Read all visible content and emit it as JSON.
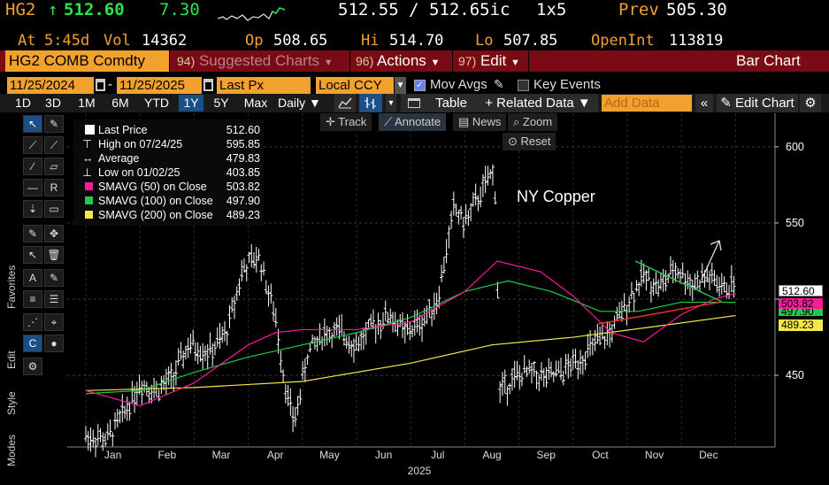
{
  "quote": {
    "ticker": "HG2",
    "arrow": "↑",
    "last": "512.60",
    "change": "7.30",
    "bid_ask": "512.55 / 512.65ic",
    "size": "1x5",
    "prev_label": "Prev",
    "prev": "505.30",
    "at_label": "At",
    "at_time": "5:45d",
    "vol_label": "Vol",
    "vol": "14362",
    "op_label": "Op",
    "op": "508.65",
    "hi_label": "Hi",
    "hi": "514.70",
    "lo_label": "Lo",
    "lo": "507.85",
    "oi_label": "OpenInt",
    "oi": "113819"
  },
  "menubar": {
    "security": "HG2 COMB Comdty",
    "suggested_num": "94)",
    "suggested": "Suggested Charts",
    "actions_num": "96)",
    "actions": "Actions",
    "edit_num": "97)",
    "edit": "Edit",
    "title": "Bar Chart"
  },
  "settings": {
    "start_date": "11/25/2024",
    "end_date": "11/25/2025",
    "dash": "-",
    "field": "Last Px",
    "currency": "Local CCY",
    "mov_avgs": "Mov Avgs",
    "key_events": "Key Events"
  },
  "ranges": {
    "items": [
      "1D",
      "3D",
      "1M",
      "6M",
      "YTD",
      "1Y",
      "5Y",
      "Max"
    ],
    "selected": "1Y",
    "period": "Daily",
    "table": "Table",
    "related": "+ Related Data",
    "add_placeholder": "Add Data",
    "edit_chart": "Edit Chart"
  },
  "chart_controls": {
    "track": "Track",
    "annotate": "Annotate",
    "news": "News",
    "zoom": "Zoom",
    "reset": "Reset"
  },
  "side_labels": {
    "favorites": "Favorites",
    "edit": "Edit",
    "style": "Style",
    "modes": "Modes"
  },
  "legend": [
    {
      "label": "Last Price",
      "value": "512.60",
      "color": "#ffffff"
    },
    {
      "label": "High on 07/24/25",
      "value": "595.85",
      "color": ""
    },
    {
      "label": "Average",
      "value": "479.83",
      "color": ""
    },
    {
      "label": "Low on 01/02/25",
      "value": "403.85",
      "color": ""
    },
    {
      "label": "SMAVG (50)  on Close",
      "value": "503.82",
      "color": "#ff1a9c"
    },
    {
      "label": "SMAVG (100)  on Close",
      "value": "497.90",
      "color": "#22c94a"
    },
    {
      "label": "SMAVG (200)  on Close",
      "value": "489.23",
      "color": "#f4e84a"
    }
  ],
  "annotation_text": "NY Copper",
  "chart_data": {
    "type": "bar",
    "title": "",
    "x_labels": [
      "Jan",
      "Feb",
      "Mar",
      "Apr",
      "May",
      "Jun",
      "Jul",
      "Aug",
      "Sep",
      "Oct",
      "Nov",
      "Dec"
    ],
    "x_year": "2025",
    "y_ticks": [
      450,
      500,
      550,
      600
    ],
    "y_tick_labels": [
      "450",
      "",
      "550",
      "600"
    ],
    "ylim": [
      403,
      622
    ],
    "series_price": [
      {
        "m": 0.0,
        "v": 410
      },
      {
        "m": 0.4,
        "v": 408
      },
      {
        "m": 0.7,
        "v": 425
      },
      {
        "m": 1.0,
        "v": 445
      },
      {
        "m": 1.3,
        "v": 440
      },
      {
        "m": 1.6,
        "v": 448
      },
      {
        "m": 1.9,
        "v": 470
      },
      {
        "m": 2.3,
        "v": 465
      },
      {
        "m": 2.6,
        "v": 478
      },
      {
        "m": 2.9,
        "v": 520
      },
      {
        "m": 3.2,
        "v": 528
      },
      {
        "m": 3.5,
        "v": 488
      },
      {
        "m": 3.7,
        "v": 440
      },
      {
        "m": 3.85,
        "v": 418
      },
      {
        "m": 4.1,
        "v": 465
      },
      {
        "m": 4.4,
        "v": 478
      },
      {
        "m": 4.7,
        "v": 478
      },
      {
        "m": 5.0,
        "v": 470
      },
      {
        "m": 5.3,
        "v": 482
      },
      {
        "m": 5.6,
        "v": 490
      },
      {
        "m": 5.9,
        "v": 478
      },
      {
        "m": 6.2,
        "v": 485
      },
      {
        "m": 6.5,
        "v": 500
      },
      {
        "m": 6.8,
        "v": 560
      },
      {
        "m": 7.0,
        "v": 550
      },
      {
        "m": 7.3,
        "v": 570
      },
      {
        "m": 7.55,
        "v": 585
      },
      {
        "m": 7.65,
        "v": 440
      },
      {
        "m": 7.9,
        "v": 448
      },
      {
        "m": 8.2,
        "v": 452
      },
      {
        "m": 8.5,
        "v": 448
      },
      {
        "m": 8.8,
        "v": 452
      },
      {
        "m": 9.1,
        "v": 460
      },
      {
        "m": 9.4,
        "v": 470
      },
      {
        "m": 9.7,
        "v": 478
      },
      {
        "m": 10.0,
        "v": 498
      },
      {
        "m": 10.3,
        "v": 515
      },
      {
        "m": 10.6,
        "v": 508
      },
      {
        "m": 10.9,
        "v": 520
      },
      {
        "m": 11.2,
        "v": 510
      },
      {
        "m": 11.5,
        "v": 515
      },
      {
        "m": 11.8,
        "v": 506
      },
      {
        "m": 12.0,
        "v": 512.6
      }
    ],
    "sma50": [
      {
        "m": 0.0,
        "v": 440
      },
      {
        "m": 1.0,
        "v": 430
      },
      {
        "m": 2.0,
        "v": 445
      },
      {
        "m": 3.0,
        "v": 470
      },
      {
        "m": 3.5,
        "v": 478
      },
      {
        "m": 4.0,
        "v": 480
      },
      {
        "m": 5.0,
        "v": 480
      },
      {
        "m": 6.0,
        "v": 485
      },
      {
        "m": 7.0,
        "v": 505
      },
      {
        "m": 7.6,
        "v": 525
      },
      {
        "m": 8.4,
        "v": 518
      },
      {
        "m": 9.0,
        "v": 502
      },
      {
        "m": 9.7,
        "v": 478
      },
      {
        "m": 10.3,
        "v": 472
      },
      {
        "m": 11.0,
        "v": 490
      },
      {
        "m": 11.6,
        "v": 500
      },
      {
        "m": 12.0,
        "v": 503.82
      }
    ],
    "sma100": [
      {
        "m": 0.0,
        "v": 438
      },
      {
        "m": 1.0,
        "v": 440
      },
      {
        "m": 2.0,
        "v": 452
      },
      {
        "m": 3.0,
        "v": 462
      },
      {
        "m": 4.0,
        "v": 470
      },
      {
        "m": 5.0,
        "v": 478
      },
      {
        "m": 6.0,
        "v": 488
      },
      {
        "m": 7.0,
        "v": 505
      },
      {
        "m": 7.8,
        "v": 512
      },
      {
        "m": 8.6,
        "v": 505
      },
      {
        "m": 9.5,
        "v": 492
      },
      {
        "m": 10.2,
        "v": 492
      },
      {
        "m": 11.0,
        "v": 498
      },
      {
        "m": 12.0,
        "v": 497.9
      }
    ],
    "sma200": [
      {
        "m": 0.0,
        "v": 440
      },
      {
        "m": 2.0,
        "v": 442
      },
      {
        "m": 4.0,
        "v": 446
      },
      {
        "m": 6.0,
        "v": 458
      },
      {
        "m": 7.5,
        "v": 470
      },
      {
        "m": 9.0,
        "v": 475
      },
      {
        "m": 10.5,
        "v": 482
      },
      {
        "m": 12.0,
        "v": 489.23
      }
    ],
    "colors": {
      "price": "#ffffff",
      "sma50": "#ff1a9c",
      "sma100": "#22c94a",
      "sma200": "#f4e84a",
      "trend_upper": "#22c94a",
      "trend_lower": "#e8322a",
      "arrow": "#e0e0e0"
    },
    "price_tags": [
      {
        "value": "512.60",
        "color": "#ffffff"
      },
      {
        "value": "503.82",
        "color": "#ff1a9c"
      },
      {
        "value": "497.90",
        "color": "#22c94a"
      },
      {
        "value": "489.23",
        "color": "#f4e84a"
      }
    ]
  }
}
